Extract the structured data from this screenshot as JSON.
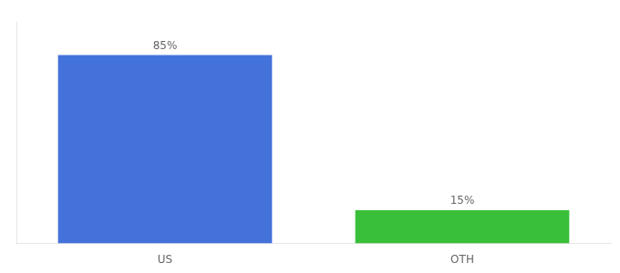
{
  "chart_data": {
    "type": "bar",
    "categories": [
      "US",
      "OTH"
    ],
    "values": [
      85,
      15
    ],
    "value_labels": [
      "85%",
      "15%"
    ],
    "colors": [
      "#4472db",
      "#3abf3a"
    ],
    "ylim": [
      0,
      100
    ],
    "data_labels": true,
    "tick_labels": "x",
    "grid": false
  }
}
